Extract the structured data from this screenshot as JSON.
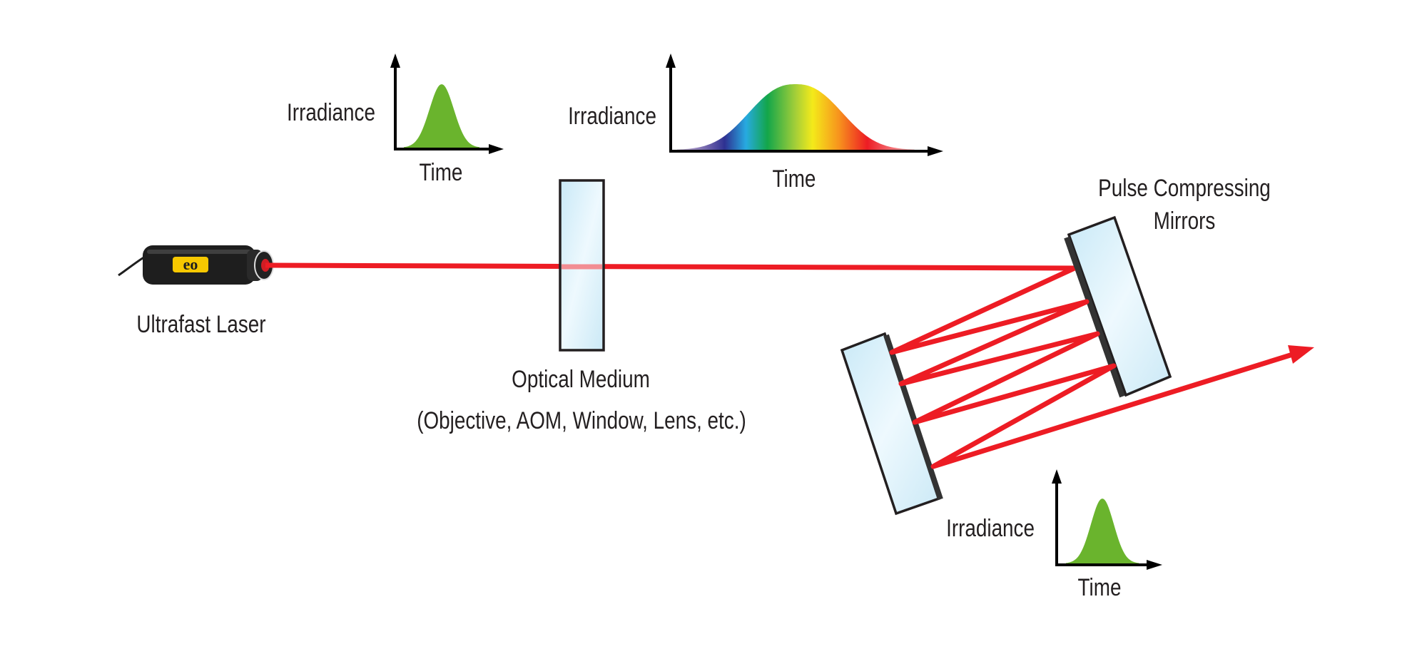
{
  "labels": {
    "laser": "Ultrafast Laser",
    "medium_line1": "Optical Medium",
    "medium_line2": "(Objective, AOM, Window, Lens, etc.)",
    "mirrors_line1": "Pulse Compressing",
    "mirrors_line2": "Mirrors"
  },
  "graphs": [
    {
      "ylabel": "Irradiance",
      "xlabel": "Time",
      "pulse": "short",
      "fill": "green"
    },
    {
      "ylabel": "Irradiance",
      "xlabel": "Time",
      "pulse": "chirped-broadened",
      "fill": "spectrum"
    },
    {
      "ylabel": "Irradiance",
      "xlabel": "Time",
      "pulse": "compressed",
      "fill": "green"
    }
  ],
  "laser_logo": "eo",
  "colors": {
    "beam": "#ed1c24",
    "pulse_green": "#6ab42d",
    "glass": "#dcf1fb",
    "mirror_coating": "#333333",
    "laser_body": "#1e1e1e",
    "logo": "#f7c800",
    "spectrum": [
      "#2e3192",
      "#27aae1",
      "#13a64a",
      "#8dc63f",
      "#f4ea1a",
      "#f7941d",
      "#ed1c24"
    ]
  }
}
